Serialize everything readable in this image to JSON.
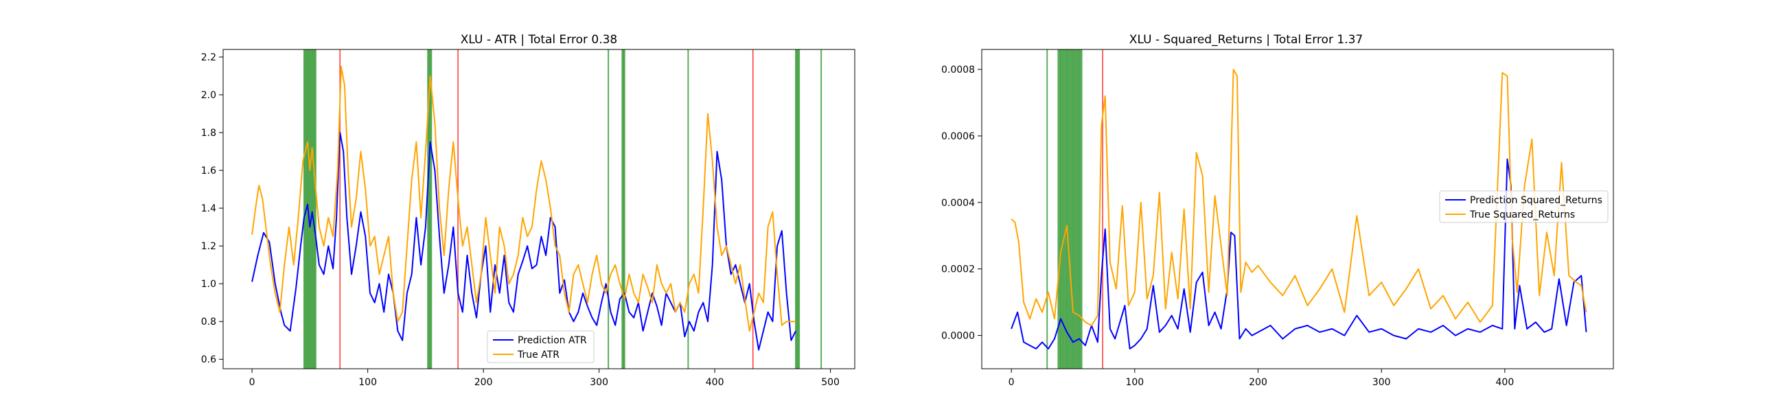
{
  "chart_data": [
    {
      "type": "line",
      "title": "XLU - ATR | Total Error 0.38",
      "xlabel": "",
      "ylabel": "",
      "xlim": [
        -25,
        521
      ],
      "ylim": [
        0.55,
        2.24
      ],
      "xticks": [
        0,
        100,
        200,
        300,
        400,
        500
      ],
      "xtick_labels": [
        "0",
        "100",
        "200",
        "300",
        "400",
        "500"
      ],
      "yticks": [
        0.6,
        0.8,
        1.0,
        1.2,
        1.4,
        1.6,
        1.8,
        2.0,
        2.2
      ],
      "ytick_labels": [
        "0.6",
        "0.8",
        "1.0",
        "1.2",
        "1.4",
        "1.6",
        "1.8",
        "2.0",
        "2.2"
      ],
      "legend_position": "lower-center",
      "series": [
        {
          "name": "Prediction ATR",
          "label": "Prediction ATR",
          "color": "#0000ff",
          "x": [
            0,
            5,
            10,
            15,
            20,
            25,
            28,
            33,
            38,
            42,
            45,
            48,
            50,
            52,
            55,
            58,
            62,
            66,
            70,
            73,
            76,
            79,
            82,
            86,
            90,
            94,
            98,
            102,
            106,
            110,
            114,
            118,
            122,
            126,
            130,
            134,
            138,
            142,
            146,
            150,
            154,
            158,
            162,
            166,
            170,
            174,
            178,
            182,
            186,
            190,
            194,
            198,
            202,
            206,
            210,
            214,
            218,
            222,
            226,
            230,
            234,
            238,
            242,
            246,
            250,
            254,
            258,
            262,
            266,
            270,
            274,
            278,
            282,
            286,
            290,
            294,
            298,
            302,
            306,
            310,
            314,
            318,
            322,
            326,
            330,
            334,
            338,
            342,
            346,
            350,
            354,
            358,
            362,
            366,
            370,
            374,
            378,
            382,
            386,
            390,
            394,
            398,
            402,
            406,
            410,
            414,
            418,
            422,
            426,
            430,
            434,
            438,
            442,
            446,
            450,
            454,
            458,
            462,
            466,
            470
          ],
          "values": [
            1.01,
            1.15,
            1.27,
            1.22,
            1.0,
            0.85,
            0.78,
            0.75,
            0.98,
            1.2,
            1.35,
            1.42,
            1.3,
            1.38,
            1.25,
            1.1,
            1.05,
            1.2,
            1.08,
            1.35,
            1.8,
            1.7,
            1.35,
            1.05,
            1.2,
            1.38,
            1.25,
            0.95,
            0.9,
            1.0,
            0.85,
            1.05,
            0.95,
            0.75,
            0.7,
            0.95,
            1.05,
            1.35,
            1.1,
            1.3,
            1.75,
            1.6,
            1.25,
            0.95,
            1.1,
            1.3,
            0.95,
            0.85,
            1.15,
            0.95,
            0.82,
            1.05,
            1.2,
            0.85,
            1.1,
            0.95,
            1.15,
            0.9,
            0.85,
            1.05,
            1.12,
            1.2,
            1.08,
            1.1,
            1.25,
            1.15,
            1.35,
            1.3,
            0.95,
            1.02,
            0.85,
            0.8,
            0.85,
            0.95,
            0.88,
            0.82,
            0.78,
            0.9,
            1.0,
            0.85,
            0.78,
            0.92,
            0.95,
            0.85,
            0.82,
            0.9,
            0.75,
            0.85,
            0.95,
            0.88,
            0.78,
            0.95,
            0.9,
            0.85,
            0.9,
            0.72,
            0.8,
            0.75,
            0.85,
            0.9,
            0.8,
            1.1,
            1.7,
            1.55,
            1.2,
            1.05,
            1.1,
            1.0,
            0.9,
            1.0,
            0.8,
            0.65,
            0.75,
            0.85,
            0.8,
            1.2,
            1.28,
            0.95,
            0.7,
            0.75
          ]
        },
        {
          "name": "True ATR",
          "label": "True ATR",
          "color": "#ffa500",
          "x": [
            0,
            3,
            6,
            9,
            12,
            16,
            20,
            24,
            28,
            32,
            36,
            40,
            44,
            48,
            50,
            52,
            55,
            58,
            62,
            66,
            70,
            74,
            77,
            80,
            83,
            86,
            90,
            94,
            98,
            102,
            106,
            110,
            114,
            118,
            122,
            126,
            130,
            134,
            138,
            142,
            146,
            150,
            154,
            158,
            162,
            166,
            170,
            174,
            178,
            182,
            186,
            190,
            194,
            198,
            202,
            206,
            210,
            214,
            218,
            222,
            226,
            230,
            234,
            238,
            242,
            246,
            250,
            254,
            258,
            262,
            266,
            270,
            274,
            278,
            282,
            286,
            290,
            294,
            298,
            302,
            306,
            310,
            314,
            318,
            322,
            326,
            330,
            334,
            338,
            342,
            346,
            350,
            354,
            358,
            362,
            366,
            370,
            374,
            378,
            382,
            386,
            390,
            394,
            398,
            402,
            406,
            410,
            414,
            418,
            422,
            426,
            430,
            434,
            438,
            442,
            446,
            450,
            454,
            458,
            462,
            466,
            470
          ],
          "values": [
            1.26,
            1.4,
            1.52,
            1.45,
            1.3,
            1.1,
            0.95,
            0.85,
            1.1,
            1.3,
            1.1,
            1.35,
            1.65,
            1.75,
            1.6,
            1.72,
            1.5,
            1.3,
            1.2,
            1.35,
            1.25,
            1.6,
            2.15,
            2.05,
            1.6,
            1.3,
            1.45,
            1.7,
            1.5,
            1.2,
            1.25,
            1.05,
            1.15,
            1.25,
            0.95,
            0.8,
            0.85,
            1.2,
            1.55,
            1.75,
            1.35,
            1.7,
            2.1,
            1.85,
            1.4,
            1.15,
            1.5,
            1.75,
            1.45,
            1.2,
            1.3,
            1.1,
            0.9,
            1.05,
            1.35,
            1.15,
            0.95,
            1.3,
            1.2,
            1.0,
            1.05,
            1.15,
            1.35,
            1.25,
            1.3,
            1.5,
            1.65,
            1.55,
            1.4,
            1.2,
            1.15,
            0.95,
            0.85,
            1.05,
            1.1,
            1.0,
            0.9,
            1.05,
            1.15,
            1.0,
            0.95,
            1.05,
            1.1,
            1.0,
            0.92,
            1.05,
            0.95,
            0.9,
            1.05,
            0.98,
            0.9,
            1.1,
            1.0,
            0.95,
            1.0,
            0.85,
            0.9,
            0.85,
            1.0,
            1.05,
            0.95,
            1.4,
            1.9,
            1.65,
            1.3,
            1.15,
            1.2,
            1.1,
            1.0,
            1.1,
            0.92,
            0.75,
            0.85,
            0.95,
            0.9,
            1.3,
            1.38,
            1.05,
            0.78,
            0.8,
            0.8,
            0.8
          ]
        }
      ],
      "green_vlines": [
        45,
        46,
        47,
        48,
        49,
        50,
        51,
        52,
        53,
        54,
        55,
        152,
        153,
        154,
        155,
        308,
        320,
        321,
        322,
        377,
        470,
        471,
        472,
        473,
        492
      ],
      "red_vlines": [
        76,
        178,
        433
      ]
    },
    {
      "type": "line",
      "title": "XLU - Squared_Returns | Total Error 1.37",
      "xlabel": "",
      "ylabel": "",
      "xlim": [
        -24,
        488
      ],
      "ylim": [
        -0.0001,
        0.00086
      ],
      "xticks": [
        0,
        100,
        200,
        300,
        400
      ],
      "xtick_labels": [
        "0",
        "100",
        "200",
        "300",
        "400"
      ],
      "yticks": [
        0.0,
        0.0002,
        0.0004,
        0.0006,
        0.0008
      ],
      "ytick_labels": [
        "0.0000",
        "0.0002",
        "0.0004",
        "0.0006",
        "0.0008"
      ],
      "legend_position": "center-right",
      "series": [
        {
          "name": "Prediction Squared_Returns",
          "label": "Prediction Squared_Returns",
          "color": "#0000ff",
          "x": [
            0,
            5,
            10,
            15,
            20,
            25,
            30,
            35,
            40,
            45,
            50,
            55,
            60,
            65,
            70,
            73,
            76,
            80,
            84,
            88,
            92,
            96,
            100,
            105,
            110,
            115,
            120,
            125,
            130,
            135,
            140,
            145,
            150,
            155,
            160,
            165,
            170,
            175,
            178,
            181,
            185,
            190,
            195,
            200,
            210,
            220,
            230,
            240,
            250,
            260,
            270,
            280,
            290,
            300,
            310,
            320,
            330,
            340,
            350,
            360,
            370,
            380,
            390,
            398,
            402,
            405,
            408,
            412,
            418,
            425,
            432,
            438,
            444,
            450,
            456,
            462,
            466
          ],
          "values": [
            2e-05,
            7e-05,
            -2e-05,
            -3e-05,
            -4e-05,
            -2e-05,
            -4e-05,
            -1e-05,
            5e-05,
            1e-05,
            -2e-05,
            -1e-05,
            -3e-05,
            3e-05,
            -2e-05,
            0.00018,
            0.00032,
            2e-05,
            -1e-05,
            4e-05,
            9e-05,
            -4e-05,
            -3e-05,
            -1e-05,
            2e-05,
            0.00015,
            1e-05,
            3e-05,
            6e-05,
            2e-05,
            0.00014,
            1e-05,
            0.00016,
            0.00019,
            3e-05,
            7e-05,
            2e-05,
            0.00014,
            0.00031,
            0.0003,
            -1e-05,
            2e-05,
            0.0,
            1e-05,
            3e-05,
            -1e-05,
            2e-05,
            3e-05,
            1e-05,
            2e-05,
            0.0,
            6e-05,
            1e-05,
            2e-05,
            0.0,
            -1e-05,
            2e-05,
            1e-05,
            3e-05,
            0.0,
            2e-05,
            1e-05,
            3e-05,
            2e-05,
            0.00053,
            0.00045,
            2e-05,
            0.00015,
            2e-05,
            4e-05,
            1e-05,
            2e-05,
            0.00017,
            3e-05,
            0.00016,
            0.00018,
            1e-05
          ]
        },
        {
          "name": "True Squared_Returns",
          "label": "True Squared_Returns",
          "color": "#ffa500",
          "x": [
            0,
            3,
            6,
            10,
            15,
            20,
            25,
            30,
            35,
            40,
            45,
            50,
            55,
            60,
            65,
            70,
            73,
            76,
            80,
            85,
            90,
            95,
            100,
            105,
            110,
            115,
            120,
            125,
            130,
            135,
            140,
            145,
            150,
            155,
            160,
            165,
            170,
            175,
            180,
            183,
            186,
            190,
            195,
            200,
            210,
            220,
            230,
            240,
            250,
            260,
            270,
            280,
            290,
            300,
            310,
            320,
            330,
            340,
            350,
            360,
            370,
            380,
            390,
            398,
            402,
            406,
            410,
            416,
            422,
            428,
            434,
            440,
            446,
            452,
            458,
            462,
            466
          ],
          "values": [
            0.00035,
            0.00034,
            0.00028,
            0.0001,
            5e-05,
            0.00011,
            7e-05,
            0.00013,
            5e-05,
            0.00025,
            0.00033,
            7e-05,
            6e-05,
            4e-05,
            3e-05,
            6e-05,
            0.00063,
            0.00072,
            0.00022,
            0.00014,
            0.00039,
            9e-05,
            0.00013,
            0.0004,
            0.00011,
            0.00018,
            0.00043,
            8e-05,
            0.00025,
            0.00011,
            0.00038,
            8e-05,
            0.00055,
            0.00048,
            0.00013,
            0.00042,
            0.00027,
            0.00012,
            0.0008,
            0.00078,
            0.00013,
            0.00022,
            0.00019,
            0.00021,
            0.00016,
            0.00012,
            0.00018,
            9e-05,
            0.00014,
            0.0002,
            7e-05,
            0.00036,
            0.00012,
            0.00016,
            9e-05,
            0.00014,
            0.0002,
            8e-05,
            0.00012,
            5e-05,
            0.0001,
            4e-05,
            9e-05,
            0.00079,
            0.00078,
            0.00029,
            0.00013,
            0.00045,
            0.00059,
            0.00012,
            0.00031,
            0.00018,
            0.00052,
            0.00018,
            0.00016,
            0.00015,
            7e-05
          ]
        }
      ],
      "green_vlines": [
        29,
        38,
        39,
        40,
        41,
        42,
        43,
        44,
        45,
        46,
        47,
        48,
        49,
        50,
        51,
        52,
        53,
        54,
        55,
        56,
        57
      ],
      "red_vlines": [
        74
      ]
    }
  ]
}
